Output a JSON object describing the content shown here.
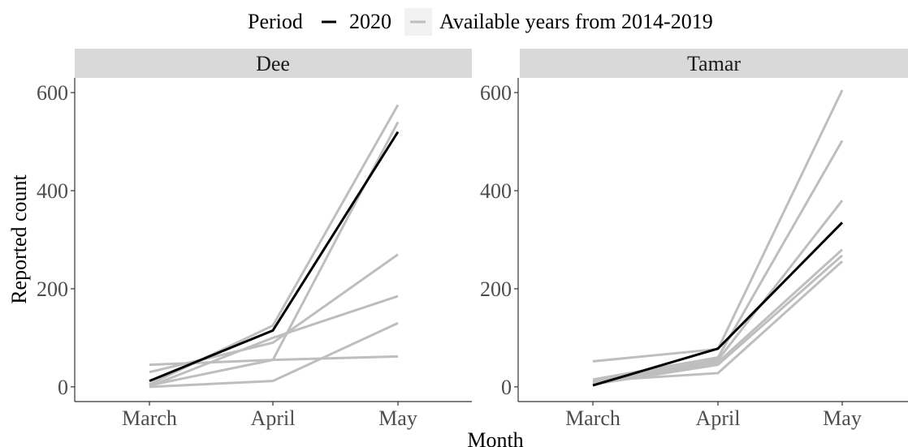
{
  "colors": {
    "highlight": "#000000",
    "other_years": "#BEBEBE",
    "strip_bg": "#D9D9D9",
    "tick_text": "#4D4D4D"
  },
  "legend": {
    "title": "Period",
    "items": [
      {
        "label": "2020",
        "color": "#000000"
      },
      {
        "label": "Available years from 2014-2019",
        "color": "#BEBEBE"
      }
    ],
    "position": "top"
  },
  "axes": {
    "xlabel": "Month",
    "ylabel": "Reported count"
  },
  "chart_data": [
    {
      "type": "line",
      "panel": "Dee",
      "x": [
        "March",
        "April",
        "May"
      ],
      "ylim": [
        -30,
        630
      ],
      "yticks": [
        0,
        200,
        400,
        600
      ],
      "grid": false,
      "series": [
        {
          "name": "2020",
          "values": [
            12,
            115,
            520
          ]
        },
        {
          "name": "Available years from 2014-2019",
          "values": [
            5,
            125,
            575
          ]
        },
        {
          "name": "Available years from 2014-2019",
          "values": [
            3,
            55,
            540
          ]
        },
        {
          "name": "Available years from 2014-2019",
          "values": [
            30,
            90,
            270
          ]
        },
        {
          "name": "Available years from 2014-2019",
          "values": [
            1,
            100,
            185
          ]
        },
        {
          "name": "Available years from 2014-2019",
          "values": [
            0,
            12,
            130
          ]
        },
        {
          "name": "Available years from 2014-2019",
          "values": [
            45,
            55,
            62
          ]
        }
      ]
    },
    {
      "type": "line",
      "panel": "Tamar",
      "x": [
        "March",
        "April",
        "May"
      ],
      "ylim": [
        -30,
        630
      ],
      "yticks": [
        0,
        200,
        400,
        600
      ],
      "grid": false,
      "series": [
        {
          "name": "2020",
          "values": [
            3,
            78,
            335
          ]
        },
        {
          "name": "Available years from 2014-2019",
          "values": [
            52,
            77,
            605
          ]
        },
        {
          "name": "Available years from 2014-2019",
          "values": [
            15,
            60,
            502
          ]
        },
        {
          "name": "Available years from 2014-2019",
          "values": [
            10,
            55,
            380
          ]
        },
        {
          "name": "Available years from 2014-2019",
          "values": [
            8,
            50,
            280
          ]
        },
        {
          "name": "Available years from 2014-2019",
          "values": [
            5,
            45,
            268
          ]
        },
        {
          "name": "Available years from 2014-2019",
          "values": [
            12,
            28,
            256
          ]
        }
      ]
    }
  ]
}
